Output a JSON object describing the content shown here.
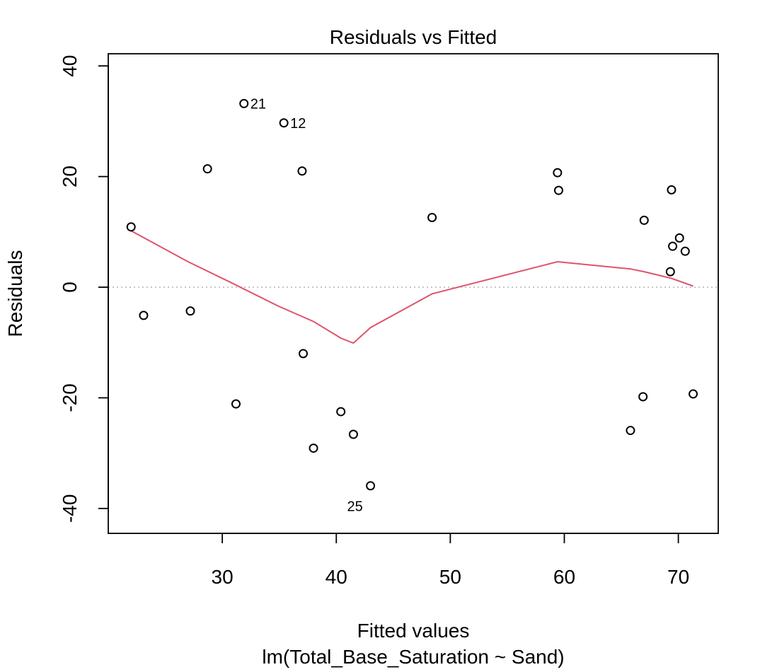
{
  "chart_data": {
    "type": "scatter",
    "title": "Residuals vs Fitted",
    "xlabel": "Fitted values",
    "subtitle": "lm(Total_Base_Saturation ~ Sand)",
    "ylabel": "Residuals",
    "xlim": [
      20,
      73.5
    ],
    "ylim": [
      -44.5,
      42.2
    ],
    "xticks": [
      30,
      40,
      50,
      60,
      70
    ],
    "yticks": [
      -40,
      -20,
      0,
      20,
      40
    ],
    "points": [
      {
        "x": 22.0,
        "y": 10.9
      },
      {
        "x": 23.1,
        "y": -5.1
      },
      {
        "x": 27.2,
        "y": -4.3
      },
      {
        "x": 28.7,
        "y": 21.4
      },
      {
        "x": 31.2,
        "y": -21.1
      },
      {
        "x": 31.9,
        "y": 33.2,
        "label": "21"
      },
      {
        "x": 35.4,
        "y": 29.7,
        "label": "12"
      },
      {
        "x": 37.0,
        "y": 21.0
      },
      {
        "x": 37.1,
        "y": -12.0
      },
      {
        "x": 38.0,
        "y": -29.1
      },
      {
        "x": 40.4,
        "y": -22.5
      },
      {
        "x": 41.5,
        "y": -26.6
      },
      {
        "x": 43.0,
        "y": -35.9,
        "label": "25"
      },
      {
        "x": 48.4,
        "y": 12.6
      },
      {
        "x": 59.4,
        "y": 20.7
      },
      {
        "x": 59.5,
        "y": 17.5
      },
      {
        "x": 65.8,
        "y": -25.9
      },
      {
        "x": 66.9,
        "y": -19.8
      },
      {
        "x": 67.0,
        "y": 12.1
      },
      {
        "x": 69.3,
        "y": 2.8
      },
      {
        "x": 69.4,
        "y": 17.6
      },
      {
        "x": 69.5,
        "y": 7.4
      },
      {
        "x": 70.1,
        "y": 8.9
      },
      {
        "x": 70.6,
        "y": 6.5
      },
      {
        "x": 71.3,
        "y": -19.3
      }
    ],
    "smooth_line": [
      {
        "x": 22.0,
        "y": 10.2
      },
      {
        "x": 27.0,
        "y": 4.6
      },
      {
        "x": 31.0,
        "y": 0.6
      },
      {
        "x": 35.0,
        "y": -3.5
      },
      {
        "x": 38.0,
        "y": -6.2
      },
      {
        "x": 40.4,
        "y": -9.2
      },
      {
        "x": 41.5,
        "y": -10.1
      },
      {
        "x": 43.0,
        "y": -7.3
      },
      {
        "x": 48.4,
        "y": -1.2
      },
      {
        "x": 59.4,
        "y": 4.6
      },
      {
        "x": 65.8,
        "y": 3.3
      },
      {
        "x": 67.0,
        "y": 2.8
      },
      {
        "x": 69.4,
        "y": 1.6
      },
      {
        "x": 71.3,
        "y": 0.2
      }
    ],
    "reference_line": 0,
    "colors": {
      "smooth": "#DF536B",
      "reference": "#BEBEBE",
      "points": "#000000"
    }
  }
}
